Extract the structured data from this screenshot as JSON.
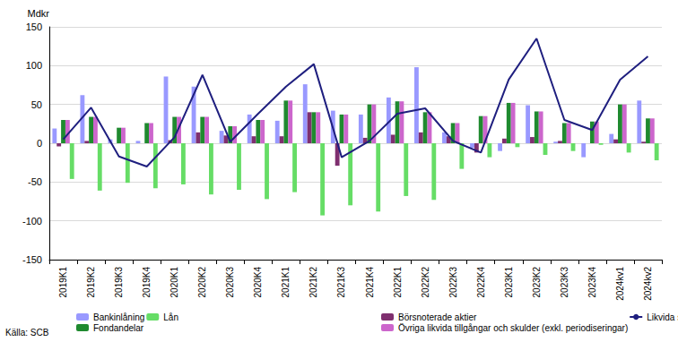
{
  "chart_data": {
    "type": "bar",
    "y_label": "Mdkr",
    "source": "Källa: SCB",
    "categories": [
      "2019K1",
      "2019K2",
      "2019K3",
      "2019K4",
      "2020K1",
      "2020K2",
      "2020K3",
      "2020K4",
      "2021K1",
      "2021K2",
      "2021K3",
      "2021K4",
      "2022K1",
      "2022K2",
      "2022K3",
      "2022K4",
      "2023K1",
      "2023K2",
      "2023K3",
      "2023K4",
      "2024kv1",
      "2024kv2"
    ],
    "series": [
      {
        "name": "Bankinlåning",
        "color": "#9999ff",
        "type": "bar",
        "values": [
          19,
          62,
          5,
          3,
          86,
          73,
          16,
          37,
          29,
          76,
          42,
          37,
          59,
          98,
          14,
          -6,
          -10,
          49,
          2,
          -18,
          12,
          55
        ]
      },
      {
        "name": "Börsnoterade aktier",
        "color": "#7f2f6f",
        "type": "bar",
        "values": [
          -4,
          3,
          0,
          0,
          4,
          14,
          10,
          9,
          9,
          40,
          -29,
          7,
          11,
          14,
          9,
          -12,
          6,
          8,
          3,
          0,
          5,
          2
        ]
      },
      {
        "name": "Fondandelar",
        "color": "#1f8a2f",
        "type": "bar",
        "values": [
          30,
          34,
          20,
          26,
          34,
          34,
          22,
          30,
          55,
          40,
          37,
          50,
          54,
          40,
          26,
          35,
          52,
          41,
          26,
          28,
          50,
          32
        ]
      },
      {
        "name": "Övriga likvida tillgångar och skulder (exkl. periodiseringar)",
        "color": "#cc66cc",
        "type": "bar",
        "values": [
          30,
          34,
          20,
          26,
          34,
          34,
          22,
          30,
          55,
          40,
          37,
          50,
          54,
          40,
          26,
          35,
          52,
          41,
          26,
          28,
          50,
          32
        ]
      },
      {
        "name": "Lån",
        "color": "#66dd66",
        "type": "bar",
        "values": [
          -46,
          -61,
          -51,
          -58,
          -53,
          -66,
          -60,
          -72,
          -63,
          -93,
          -80,
          -88,
          -68,
          -73,
          -33,
          -18,
          -5,
          -15,
          -10,
          -2,
          -12,
          -22
        ]
      },
      {
        "name": "Likvida sparandet",
        "color": "#1f1f7f",
        "type": "line",
        "values": [
          5,
          46,
          -17,
          -30,
          8,
          88,
          2,
          38,
          73,
          102,
          -18,
          3,
          38,
          45,
          3,
          -12,
          82,
          135,
          30,
          17,
          82,
          112
        ]
      }
    ],
    "ylim": [
      -150,
      150
    ],
    "yticks": [
      -150,
      -100,
      -50,
      0,
      50,
      100,
      150
    ],
    "grid": true,
    "legend": "bottom"
  }
}
